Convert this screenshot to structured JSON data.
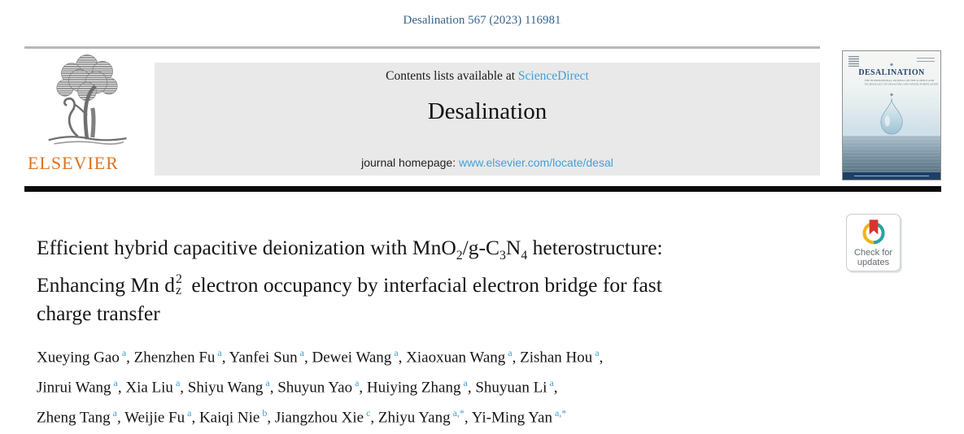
{
  "page": {
    "citation": "Desalination 567 (2023) 116981"
  },
  "publisher": {
    "wordmark": "ELSEVIER"
  },
  "banner": {
    "contents_prefix": "Contents lists available at ",
    "contents_link": "ScienceDirect",
    "journal_name": "Desalination",
    "homepage_prefix": "journal homepage: ",
    "homepage_link": "www.elsevier.com/locate/desal"
  },
  "cover": {
    "title": "DESALINATION",
    "subtitle_line1": "THE INTERNATIONAL JOURNAL ON THE SCIENCE AND",
    "subtitle_line2": "TECHNOLOGY OF DESALTING AND WATER PURIFICATION"
  },
  "crossmark": {
    "line1": "Check for",
    "line2": "updates"
  },
  "article": {
    "title_lines": [
      [
        {
          "t": "Efficient hybrid capacitive deionization with MnO"
        },
        {
          "t": "2",
          "f": "sub"
        },
        {
          "t": "/g-C"
        },
        {
          "t": "3",
          "f": "sub"
        },
        {
          "t": "N"
        },
        {
          "t": "4",
          "f": "sub"
        },
        {
          "t": " heterostructure:"
        }
      ],
      [
        {
          "t": "Enhancing Mn d"
        },
        {
          "f": "stack",
          "sup": "2",
          "sub": "z"
        },
        {
          "t": " electron occupancy by interfacial electron bridge for fast"
        }
      ],
      [
        {
          "t": "charge transfer"
        }
      ]
    ],
    "author_lines": [
      [
        {
          "name": "Xueying Gao",
          "sup": "a"
        },
        {
          "name": "Zhenzhen Fu",
          "sup": "a"
        },
        {
          "name": "Yanfei Sun",
          "sup": "a"
        },
        {
          "name": "Dewei Wang",
          "sup": "a"
        },
        {
          "name": "Xiaoxuan Wang",
          "sup": "a"
        },
        {
          "name": "Zishan Hou",
          "sup": "a"
        }
      ],
      [
        {
          "name": "Jinrui Wang",
          "sup": "a"
        },
        {
          "name": "Xia Liu",
          "sup": "a"
        },
        {
          "name": "Shiyu Wang",
          "sup": "a"
        },
        {
          "name": "Shuyun Yao",
          "sup": "a"
        },
        {
          "name": "Huiying Zhang",
          "sup": "a"
        },
        {
          "name": "Shuyuan Li",
          "sup": "a"
        }
      ],
      [
        {
          "name": "Zheng Tang",
          "sup": "a"
        },
        {
          "name": "Weijie Fu",
          "sup": "a"
        },
        {
          "name": "Kaiqi Nie",
          "sup": "b"
        },
        {
          "name": "Jiangzhou Xie",
          "sup": "c"
        },
        {
          "name": "Zhiyu Yang",
          "sup": "a,*"
        },
        {
          "name": "Yi-Ming Yan",
          "sup": "a,*"
        }
      ]
    ]
  },
  "colors": {
    "link-blue": "#42a0d8",
    "citation-blue": "#38648c",
    "elsevier-orange": "#e0731d",
    "banner-gray": "#e9e9e9",
    "divider-black": "#0c0c0c",
    "cover-navy": "#27476f",
    "crossmark-red": "#d5352f",
    "crossmark-yellow": "#edb41f",
    "crossmark-teal": "#2ba0a4",
    "text-black": "#161616"
  }
}
